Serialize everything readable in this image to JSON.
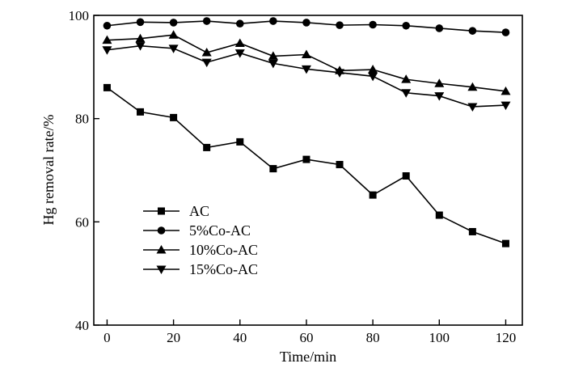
{
  "chart_data": {
    "type": "line",
    "title": "",
    "xlabel": "Time/min",
    "ylabel": "Hg removal rate/%",
    "xlim": [
      -4,
      125
    ],
    "ylim": [
      40,
      100
    ],
    "xticks": [
      0,
      20,
      40,
      60,
      80,
      100,
      120
    ],
    "yticks": [
      40,
      60,
      80,
      100
    ],
    "grid": false,
    "legend_position": "center-left",
    "x": [
      0,
      10,
      20,
      30,
      40,
      50,
      60,
      70,
      80,
      90,
      100,
      110,
      120
    ],
    "series": [
      {
        "name": "AC",
        "marker": "square",
        "values": [
          86.0,
          81.3,
          80.2,
          74.4,
          75.5,
          70.3,
          72.1,
          71.1,
          65.2,
          68.9,
          61.3,
          58.1,
          55.8
        ]
      },
      {
        "name": "5%Co-AC",
        "marker": "circle",
        "values": [
          98.0,
          98.7,
          98.6,
          98.9,
          98.4,
          98.9,
          98.6,
          98.1,
          98.2,
          98.0,
          97.5,
          97.0,
          96.7
        ]
      },
      {
        "name": "10%Co-AC",
        "marker": "triangle-up",
        "values": [
          95.2,
          95.5,
          96.2,
          92.8,
          94.6,
          92.1,
          92.4,
          89.3,
          89.5,
          87.6,
          86.8,
          86.1,
          85.3
        ]
      },
      {
        "name": "15%Co-AC",
        "marker": "triangle-down",
        "values": [
          93.3,
          94.1,
          93.6,
          90.9,
          92.7,
          90.7,
          89.6,
          88.9,
          88.2,
          85.0,
          84.4,
          82.3,
          82.6
        ]
      }
    ]
  }
}
